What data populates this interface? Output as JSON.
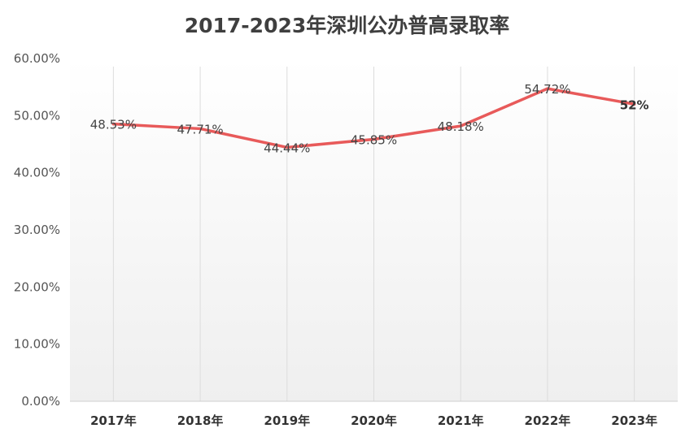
{
  "chart_data": {
    "type": "line",
    "title": "2017-2023年深圳公办普高录取率",
    "categories": [
      "2017年",
      "2018年",
      "2019年",
      "2020年",
      "2021年",
      "2022年",
      "2023年"
    ],
    "series": [
      {
        "values": [
          48.53,
          47.71,
          44.44,
          45.85,
          48.18,
          54.72,
          52
        ],
        "data_labels": [
          "48.53%",
          "47.71%",
          "44.44%",
          "45.85%",
          "48.18%",
          "54.72%",
          "52%"
        ],
        "color": "#e85a5a"
      }
    ],
    "y_ticks": [
      "0.00%",
      "10.00%",
      "20.00%",
      "30.00%",
      "40.00%",
      "50.00%",
      "60.00%"
    ],
    "ylim": [
      0,
      60
    ],
    "grid": "vertical",
    "xlabel": "",
    "ylabel": ""
  }
}
